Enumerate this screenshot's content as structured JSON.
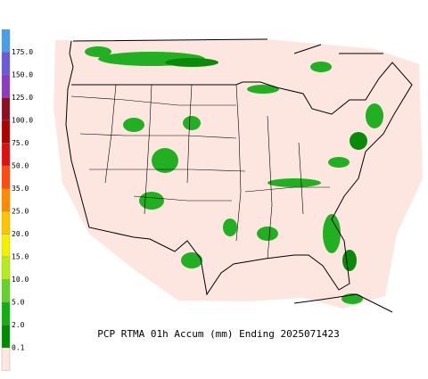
{
  "map": {
    "title": "PCP RTMA 01h Accum (mm) Ending 2025071423",
    "colorbar": {
      "labels": [
        "175.0",
        "150.0",
        "125.0",
        "100.0",
        "75.0",
        "50.0",
        "35.0",
        "25.0",
        "20.0",
        "15.0",
        "10.0",
        "5.0",
        "2.0",
        "0.1"
      ],
      "colors": [
        "#4a9ee6",
        "#6a5ad8",
        "#8a3cc0",
        "#8c1020",
        "#b00000",
        "#e01010",
        "#ff4a10",
        "#ff8c00",
        "#ffc400",
        "#f4f000",
        "#b4ec20",
        "#66d02c",
        "#10b010",
        "#008a00",
        "#ffe6e0"
      ]
    }
  }
}
